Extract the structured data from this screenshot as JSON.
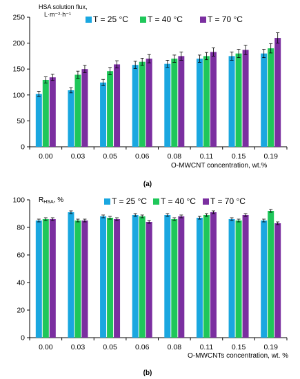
{
  "chart_data": [
    {
      "type": "bar",
      "panel_label": "(a)",
      "ylabel_line1": "HSA solution flux,",
      "ylabel_line2": "L·m⁻²·h⁻¹",
      "xlabel": "O-MWCNT concentration,  wt.%",
      "categories": [
        "0.00",
        "0.03",
        "0.05",
        "0.06",
        "0.08",
        "0.11",
        "0.15",
        "0.19"
      ],
      "ylim": [
        0,
        250
      ],
      "yticks": [
        "0",
        "50",
        "100",
        "150",
        "200",
        "250"
      ],
      "grid": false,
      "legend_position": "top",
      "series": [
        {
          "name": "T = 25 °C",
          "color": "#1aa7e0",
          "values": [
            102,
            109,
            124,
            158,
            160,
            170,
            175,
            180
          ],
          "errors": [
            5,
            5,
            6,
            7,
            7,
            7,
            8,
            8
          ]
        },
        {
          "name": "T = 40 °C",
          "color": "#1fc75a",
          "values": [
            129,
            139,
            146,
            164,
            170,
            175,
            180,
            190
          ],
          "errors": [
            6,
            7,
            7,
            7,
            7,
            7,
            8,
            9
          ]
        },
        {
          "name": "T = 70 °C",
          "color": "#7b2fa0",
          "values": [
            134,
            150,
            159,
            170,
            175,
            183,
            187,
            210
          ],
          "errors": [
            6,
            7,
            7,
            8,
            8,
            8,
            9,
            10
          ]
        }
      ]
    },
    {
      "type": "bar",
      "panel_label": "(b)",
      "ylabel_main": "R",
      "ylabel_sub": "HSA",
      "ylabel_suffix": ", %",
      "xlabel": "O-MWCNTs concentration, wt. %",
      "categories": [
        "0.00",
        "0.03",
        "0.05",
        "0.06",
        "0.08",
        "0.11",
        "0.15",
        "0.19"
      ],
      "ylim": [
        0,
        100
      ],
      "yticks": [
        "0",
        "20",
        "40",
        "60",
        "80",
        "100"
      ],
      "grid": false,
      "legend_position": "top",
      "series": [
        {
          "name": "T = 25 °C",
          "color": "#1aa7e0",
          "values": [
            85,
            91,
            88,
            89,
            89,
            87,
            86,
            85
          ],
          "errors": [
            1,
            1,
            1,
            1,
            1,
            1,
            1,
            1
          ]
        },
        {
          "name": "T = 40 °C",
          "color": "#1fc75a",
          "values": [
            86,
            85,
            87,
            88,
            86,
            89,
            85,
            92
          ],
          "errors": [
            1,
            1,
            1,
            1,
            1,
            1,
            1,
            1
          ]
        },
        {
          "name": "T = 70 °C",
          "color": "#7b2fa0",
          "values": [
            86,
            85,
            86,
            84,
            88,
            91,
            89,
            83
          ],
          "errors": [
            1,
            1,
            1,
            1,
            1,
            1,
            1,
            1
          ]
        }
      ]
    }
  ]
}
